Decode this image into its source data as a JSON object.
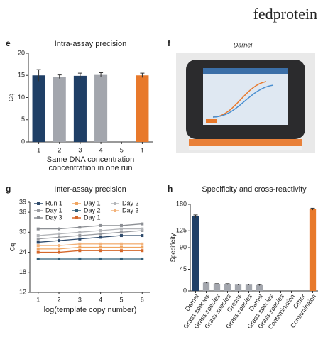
{
  "brand": "fedprotein",
  "photo": {
    "panel": "f",
    "caption": "Darnel"
  },
  "chart_data": [
    {
      "type": "bar",
      "panel": "e",
      "title": "Intra-assay precision",
      "ylabel": "Cq",
      "xlabel": [
        "Same DNA concentration",
        "concentration in one run"
      ],
      "categories": [
        "1",
        "2",
        "3",
        "4",
        "5",
        "f"
      ],
      "values": [
        15,
        14.7,
        14.9,
        15.1,
        null,
        15
      ],
      "errors": [
        1.3,
        0.4,
        0.6,
        0.5,
        null,
        0.5
      ],
      "colors": [
        "#1f3f66",
        "#a3a6ad",
        "#1f3f66",
        "#a3a6ad",
        null,
        "#e8792b"
      ],
      "ylim": [
        0,
        20
      ],
      "yticks": [
        0,
        5,
        10,
        15,
        20
      ]
    },
    {
      "type": "line",
      "panel": "g",
      "title": "Inter-assay precision",
      "ylabel": "Cq",
      "xlabel": "log(template copy number)",
      "x": [
        1,
        2,
        3,
        4,
        5,
        6
      ],
      "xlim": [
        0.6,
        6.4
      ],
      "xticks": [
        1,
        2,
        3,
        4,
        5,
        6
      ],
      "ylim": [
        12,
        39
      ],
      "yticks": [
        12,
        18,
        24,
        30,
        36,
        39
      ],
      "series": [
        {
          "name": "Run 1",
          "color": "#2e4a6b",
          "values": [
            27,
            27.5,
            28,
            28.5,
            29,
            29
          ]
        },
        {
          "name": "Day 1",
          "color": "#9a9ca1",
          "values": [
            28,
            28.5,
            29,
            29.5,
            30,
            30.5
          ]
        },
        {
          "name": "Day 3",
          "color": "#8c8f94",
          "values": [
            31,
            31,
            31.5,
            32,
            32,
            32.5
          ]
        },
        {
          "name": "Day 1",
          "color": "#f0a560",
          "values": [
            25,
            25,
            25.5,
            25.5,
            25.5,
            25.5
          ]
        },
        {
          "name": "Day 2",
          "color": "#2f5d78",
          "values": [
            22,
            22,
            22,
            22,
            22,
            22
          ]
        },
        {
          "name": "Day 1",
          "color": "#d4672a",
          "values": [
            24,
            24,
            24.5,
            24.5,
            24.5,
            24.5
          ]
        },
        {
          "name": "Day 2",
          "color": "#b3b5b9",
          "values": [
            29,
            29.5,
            30,
            30.5,
            31,
            31
          ]
        },
        {
          "name": "Day 3",
          "color": "#f3b27a",
          "values": [
            26,
            26,
            26.5,
            26.5,
            26.5,
            26.5
          ]
        }
      ]
    },
    {
      "type": "bar",
      "panel": "h",
      "title": "Specificity and cross-reactivity",
      "ylabel": "Specificity",
      "categories": [
        "Darnel",
        "Grass species",
        "Grass species",
        "Grass species",
        "Grasss",
        "Grass species",
        "Darnel",
        "Grass species",
        "Grass species",
        "Contamination",
        "Other",
        "Contaminaion"
      ],
      "values": [
        155,
        17,
        14,
        14,
        13,
        13,
        12,
        null,
        null,
        null,
        null,
        170
      ],
      "errors": [
        3,
        1,
        1,
        1,
        1,
        1,
        1,
        null,
        null,
        null,
        null,
        2
      ],
      "colors": [
        "#1f3f66",
        "#a3a6ad",
        "#a3a6ad",
        "#a3a6ad",
        "#a3a6ad",
        "#a3a6ad",
        "#a3a6ad",
        null,
        null,
        null,
        null,
        "#e8792b"
      ],
      "ylim": [
        0,
        180
      ],
      "yticks": [
        0,
        45,
        90,
        125,
        180
      ],
      "rotate_labels": true
    }
  ]
}
